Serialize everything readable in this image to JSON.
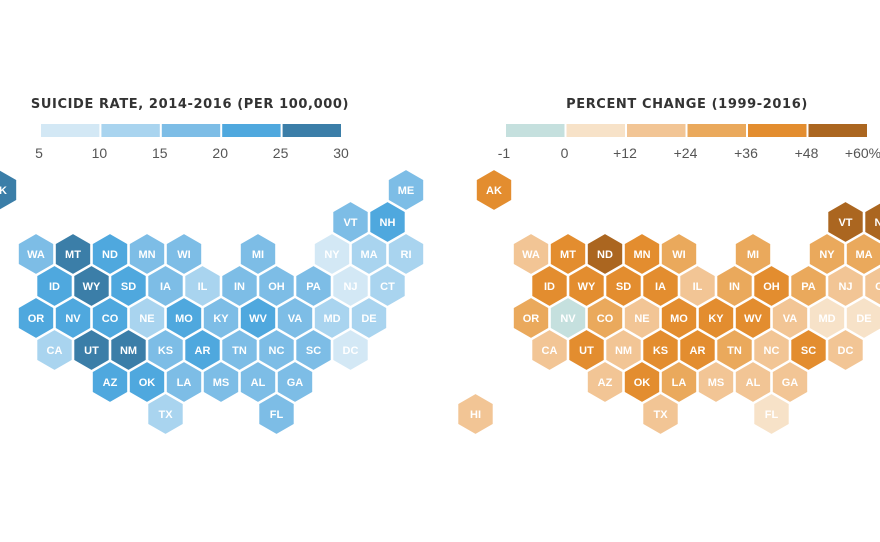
{
  "chart_data": [
    {
      "type": "heatmap",
      "title": "SUICIDE RATE, 2014-2016 (PER 100,000)",
      "legend": {
        "ticks": [
          "5",
          "10",
          "15",
          "20",
          "25",
          "30"
        ],
        "bins": [
          "5-10",
          "10-15",
          "15-20",
          "20-25",
          "25-30"
        ],
        "colors": [
          "#d3e8f5",
          "#a9d4ef",
          "#7dbde6",
          "#4fa8de",
          "#3b7ea8"
        ]
      },
      "values": {
        "AK": "25-30",
        "ME": "15-20",
        "VT": "15-20",
        "NH": "20-25",
        "WA": "15-20",
        "MT": "25-30",
        "ND": "20-25",
        "MN": "15-20",
        "WI": "15-20",
        "MI": "15-20",
        "NY": "5-10",
        "MA": "10-15",
        "RI": "10-15",
        "ID": "20-25",
        "WY": "25-30",
        "SD": "20-25",
        "IA": "15-20",
        "IL": "10-15",
        "IN": "15-20",
        "OH": "15-20",
        "PA": "15-20",
        "NJ": "5-10",
        "CT": "10-15",
        "OR": "20-25",
        "NV": "20-25",
        "CO": "20-25",
        "NE": "10-15",
        "MO": "20-25",
        "KY": "15-20",
        "WV": "20-25",
        "VA": "15-20",
        "MD": "10-15",
        "DE": "10-15",
        "CA": "10-15",
        "UT": "25-30",
        "NM": "25-30",
        "KS": "15-20",
        "AR": "20-25",
        "TN": "15-20",
        "NC": "15-20",
        "SC": "15-20",
        "DC": "5-10",
        "AZ": "20-25",
        "OK": "20-25",
        "LA": "15-20",
        "MS": "15-20",
        "AL": "15-20",
        "GA": "15-20",
        "TX": "10-15",
        "FL": "15-20"
      }
    },
    {
      "type": "heatmap",
      "title": "PERCENT CHANGE (1999-2016)",
      "legend": {
        "ticks": [
          "-1",
          "0",
          "+12",
          "+24",
          "+36",
          "+48",
          "+60%"
        ],
        "bins": [
          "-1-0",
          "0-12",
          "12-24",
          "24-36",
          "36-48",
          "48-60"
        ],
        "colors": [
          "#c5e0de",
          "#f7e2c8",
          "#f2c595",
          "#eaa95c",
          "#e38d2f",
          "#ab6620"
        ]
      },
      "values": {
        "AK": "36-48",
        "VT": "48-60",
        "NH": "48-60",
        "WA": "12-24",
        "MT": "36-48",
        "ND": "48-60",
        "MN": "36-48",
        "WI": "24-36",
        "MI": "24-36",
        "NY": "24-36",
        "MA": "24-36",
        "ID": "36-48",
        "WY": "36-48",
        "SD": "36-48",
        "IA": "36-48",
        "IL": "12-24",
        "IN": "24-36",
        "OH": "36-48",
        "PA": "24-36",
        "NJ": "12-24",
        "CT": "12-24",
        "OR": "24-36",
        "NV": "-1-0",
        "CO": "24-36",
        "NE": "12-24",
        "MO": "36-48",
        "KY": "36-48",
        "WV": "36-48",
        "VA": "12-24",
        "MD": "0-12",
        "DE": "0-12",
        "CA": "12-24",
        "UT": "36-48",
        "NM": "12-24",
        "KS": "36-48",
        "AR": "36-48",
        "TN": "24-36",
        "NC": "12-24",
        "SC": "36-48",
        "DC": "12-24",
        "AZ": "12-24",
        "OK": "36-48",
        "LA": "24-36",
        "MS": "12-24",
        "AL": "12-24",
        "GA": "12-24",
        "TX": "12-24",
        "FL": "0-12",
        "HI": "12-24"
      }
    }
  ]
}
